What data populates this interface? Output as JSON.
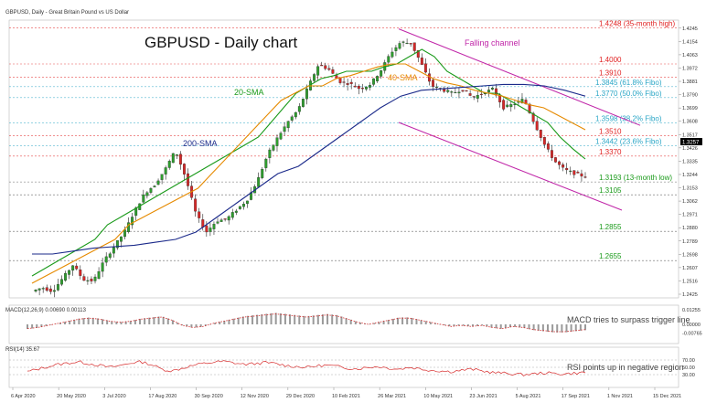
{
  "chart_header": {
    "symbol_line": "GBPUSD, Daily - Great Britain Pound vs US Dollar",
    "title": "GBPUSD - Daily chart"
  },
  "chart_data": {
    "type": "candlestick",
    "title": "GBPUSD - Daily chart",
    "ylim": [
      1.24,
      1.43
    ],
    "x_tick_labels": [
      "6 Apr 2020",
      "20 May 2020",
      "3 Jul 2020",
      "17 Aug 2020",
      "30 Sep 2020",
      "12 Nov 2020",
      "29 Dec 2020",
      "10 Feb 2021",
      "26 Mar 2021",
      "10 May 2021",
      "23 Jun 2021",
      "5 Aug 2021",
      "17 Sep 2021",
      "1 Nov 2021",
      "15 Dec 2021"
    ],
    "y_tick_labels": [
      "1.4245",
      "1.4154",
      "1.4063",
      "1.3972",
      "1.3881",
      "1.3790",
      "1.3699",
      "1.3608",
      "1.3517",
      "1.3426",
      "1.3335",
      "1.3244",
      "1.3153",
      "1.3062",
      "1.2971",
      "1.2880",
      "1.2789",
      "1.2698",
      "1.2607",
      "1.2516",
      "1.2425"
    ],
    "last_price_label": "1.3257",
    "price_path": [
      [
        1.25,
        1.239
      ],
      [
        1.252,
        1.242
      ],
      [
        1.248,
        1.241
      ],
      [
        1.26,
        1.247
      ],
      [
        1.27,
        1.255
      ],
      [
        1.26,
        1.245
      ],
      [
        1.255,
        1.248
      ],
      [
        1.27,
        1.26
      ],
      [
        1.28,
        1.27
      ],
      [
        1.29,
        1.28
      ],
      [
        1.308,
        1.29
      ],
      [
        1.318,
        1.305
      ],
      [
        1.32,
        1.315
      ],
      [
        1.336,
        1.32
      ],
      [
        1.346,
        1.336
      ],
      [
        1.314,
        1.33
      ],
      [
        1.285,
        1.31
      ],
      [
        1.288,
        1.282
      ],
      [
        1.298,
        1.287
      ],
      [
        1.29,
        1.298
      ],
      [
        1.305,
        1.296
      ],
      [
        1.31,
        1.304
      ],
      [
        1.328,
        1.312
      ],
      [
        1.348,
        1.328
      ],
      [
        1.355,
        1.345
      ],
      [
        1.366,
        1.355
      ],
      [
        1.375,
        1.363
      ],
      [
        1.395,
        1.375
      ],
      [
        1.41,
        1.39
      ],
      [
        1.386,
        1.406
      ],
      [
        1.39,
        1.386
      ],
      [
        1.385,
        1.388
      ],
      [
        1.388,
        1.378
      ],
      [
        1.39,
        1.382
      ],
      [
        1.4,
        1.39
      ],
      [
        1.415,
        1.4
      ],
      [
        1.42,
        1.41
      ],
      [
        1.41,
        1.418
      ],
      [
        1.392,
        1.408
      ],
      [
        1.39,
        1.38
      ],
      [
        1.375,
        1.39
      ],
      [
        1.385,
        1.375
      ],
      [
        1.38,
        1.385
      ],
      [
        1.374,
        1.38
      ],
      [
        1.385,
        1.375
      ],
      [
        1.38,
        1.386
      ],
      [
        1.36,
        1.38
      ],
      [
        1.38,
        1.365
      ],
      [
        1.37,
        1.382
      ],
      [
        1.35,
        1.37
      ],
      [
        1.342,
        1.348
      ],
      [
        1.327,
        1.34
      ],
      [
        1.33,
        1.325
      ],
      [
        1.322,
        1.328
      ],
      [
        1.3257,
        1.32
      ]
    ],
    "sma_20": [
      1.255,
      1.26,
      1.265,
      1.27,
      1.275,
      1.28,
      1.29,
      1.295,
      1.3,
      1.305,
      1.31,
      1.315,
      1.32,
      1.325,
      1.33,
      1.335,
      1.34,
      1.345,
      1.35,
      1.36,
      1.37,
      1.38,
      1.385,
      1.39,
      1.392,
      1.395,
      1.395,
      1.395,
      1.398,
      1.4,
      1.405,
      1.41,
      1.405,
      1.395,
      1.39,
      1.385,
      1.38,
      1.38,
      1.375,
      1.37,
      1.365,
      1.36,
      1.35,
      1.342,
      1.335
    ],
    "sma_40": [
      1.25,
      1.255,
      1.26,
      1.265,
      1.27,
      1.275,
      1.28,
      1.29,
      1.295,
      1.3,
      1.305,
      1.31,
      1.315,
      1.325,
      1.335,
      1.345,
      1.355,
      1.365,
      1.375,
      1.38,
      1.385,
      1.385,
      1.39,
      1.392,
      1.395,
      1.398,
      1.4,
      1.4,
      1.395,
      1.39,
      1.387,
      1.385,
      1.382,
      1.38,
      1.378,
      1.375,
      1.372,
      1.37,
      1.365,
      1.36,
      1.355
    ],
    "sma_200": [
      1.27,
      1.27,
      1.272,
      1.274,
      1.275,
      1.276,
      1.278,
      1.28,
      1.285,
      1.295,
      1.305,
      1.315,
      1.325,
      1.33,
      1.34,
      1.35,
      1.36,
      1.37,
      1.378,
      1.382,
      1.383,
      1.384,
      1.385,
      1.386,
      1.386,
      1.385,
      1.382,
      1.378
    ],
    "series_labels": {
      "sma_20": "20-SMA",
      "sma_40": "40-SMA",
      "sma_200": "200-SMA",
      "channel": "Falling channel"
    },
    "levels": [
      {
        "value": 1.4248,
        "label": "1.4248 (35-month high)",
        "color": "#e02020"
      },
      {
        "value": 1.4,
        "label": "1.4000",
        "color": "#e02020"
      },
      {
        "value": 1.391,
        "label": "1.3910",
        "color": "#e02020"
      },
      {
        "value": 1.3845,
        "label": "1.3845 (61.8% Fibo)",
        "color": "#2aa6c6"
      },
      {
        "value": 1.377,
        "label": "1.3770 (50.0% Fibo)",
        "color": "#2aa6c6"
      },
      {
        "value": 1.3598,
        "label": "1.3598 (38.2% Fibo)",
        "color": "#2aa6c6"
      },
      {
        "value": 1.351,
        "label": "1.3510",
        "color": "#e02020"
      },
      {
        "value": 1.3442,
        "label": "1.3442 (23.6% Fibo)",
        "color": "#2aa6c6"
      },
      {
        "value": 1.337,
        "label": "1.3370",
        "color": "#e02020"
      },
      {
        "value": 1.3193,
        "label": "1.3193 (13-month low)",
        "color": "#1a9a1a"
      },
      {
        "value": 1.3105,
        "label": "1.3105",
        "color": "#1a9a1a"
      },
      {
        "value": 1.2855,
        "label": "1.2855",
        "color": "#1a9a1a"
      },
      {
        "value": 1.2655,
        "label": "1.2655",
        "color": "#1a9a1a"
      }
    ],
    "macd": {
      "label": "MACD(12,26,9) 0.00690 0.00113",
      "annotation": "MACD tries to surpass trigger line",
      "ylim": [
        -0.015,
        0.015
      ],
      "histogram": [
        -0.004,
        -0.003,
        -0.001,
        0.001,
        0.003,
        0.005,
        0.006,
        0.005,
        0.003,
        0.002,
        0.003,
        0.005,
        0.006,
        0.007,
        0.004,
        -0.001,
        -0.003,
        -0.002,
        0.001,
        0.003,
        0.005,
        0.007,
        0.008,
        0.009,
        0.01,
        0.009,
        0.008,
        0.007,
        0.008,
        0.009,
        0.008,
        0.005,
        0.002,
        0.0,
        0.002,
        0.004,
        0.006,
        0.006,
        0.004,
        0.002,
        0.0,
        -0.002,
        -0.001,
        -0.002,
        -0.001,
        -0.003,
        -0.004,
        -0.002,
        -0.003,
        -0.005,
        -0.006,
        -0.007,
        -0.007,
        -0.006,
        -0.005
      ],
      "axis_labels": [
        "0.01255",
        "0.00000",
        "-0.00765"
      ]
    },
    "rsi": {
      "label": "RSI(14) 35.67",
      "annotation": "RSI points up in negative region",
      "ylim": [
        0,
        100
      ],
      "values": [
        38,
        45,
        52,
        58,
        62,
        65,
        60,
        55,
        50,
        55,
        62,
        65,
        58,
        45,
        40,
        48,
        55,
        60,
        64,
        66,
        62,
        58,
        60,
        63,
        60,
        55,
        52,
        50,
        54,
        56,
        52,
        48,
        46,
        50,
        52,
        48,
        45,
        50,
        46,
        42,
        40,
        38,
        42,
        45,
        40,
        36,
        34,
        32,
        30,
        32,
        35,
        33,
        32,
        34,
        36
      ],
      "axis_labels": [
        "70.00",
        "50.00",
        "30.00"
      ]
    }
  }
}
